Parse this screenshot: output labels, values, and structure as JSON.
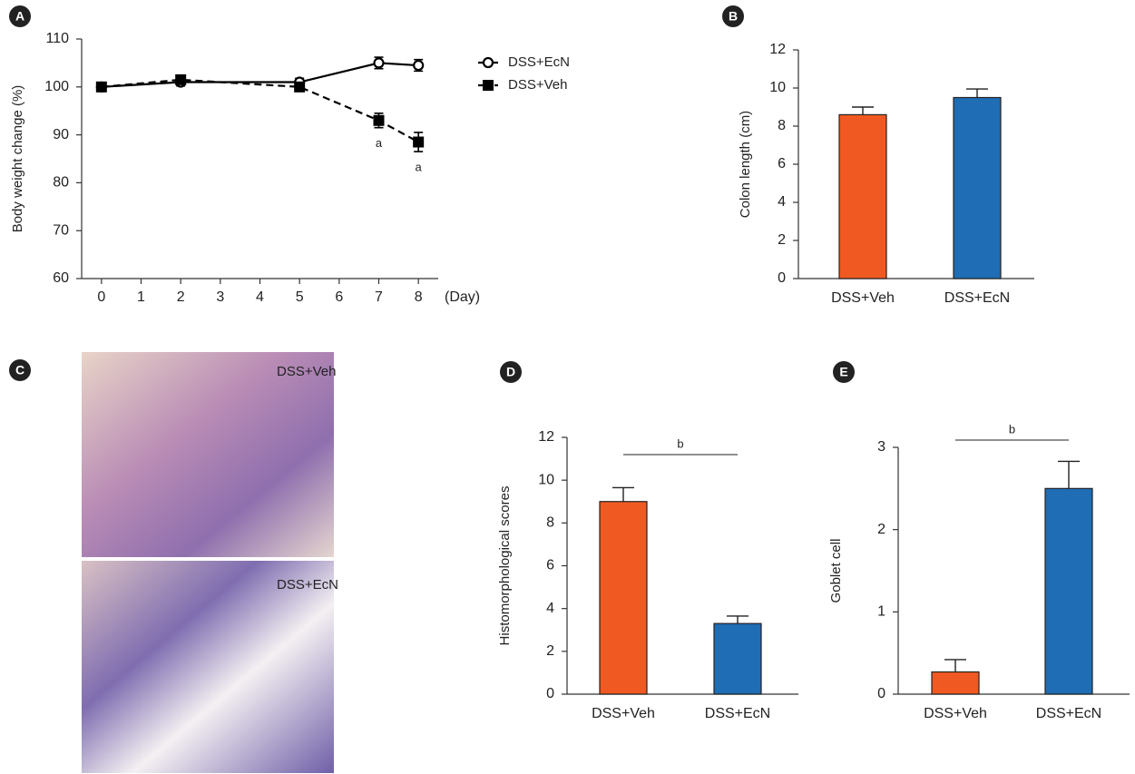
{
  "chart_data": [
    {
      "panel": "A",
      "type": "line",
      "ylabel": "Body weight change (%)",
      "xlabel": "(Day)",
      "legend": "right",
      "x": [
        0,
        2,
        5,
        7,
        8
      ],
      "xlim": [
        -0.5,
        8.5
      ],
      "xticks": [
        0,
        1,
        2,
        3,
        4,
        5,
        6,
        7,
        8
      ],
      "ylim": [
        60,
        110
      ],
      "yticks": [
        60,
        70,
        80,
        90,
        100,
        110
      ],
      "series": [
        {
          "name": "DSS+EcN",
          "color": "#000000",
          "marker": "circle-open",
          "dashed": false,
          "values": [
            100,
            101,
            101,
            105,
            104.5
          ],
          "errors": [
            0.5,
            0.8,
            0.8,
            1.2,
            1.2
          ]
        },
        {
          "name": "DSS+Veh",
          "color": "#000000",
          "marker": "square",
          "dashed": true,
          "values": [
            100,
            101.5,
            100,
            93,
            88.5
          ],
          "errors": [
            0.5,
            0.8,
            0.8,
            1.5,
            2
          ],
          "point_labels": [
            null,
            null,
            null,
            "a",
            "a"
          ]
        }
      ]
    },
    {
      "panel": "B",
      "type": "bar",
      "ylabel": "Colon length (cm)",
      "categories": [
        "DSS+Veh",
        "DSS+EcN"
      ],
      "values": [
        8.6,
        9.5
      ],
      "errors": [
        0.4,
        0.45
      ],
      "colors": [
        "#f05a22",
        "#1e6db5"
      ],
      "ylim": [
        0,
        12
      ],
      "yticks": [
        0,
        2,
        4,
        6,
        8,
        10,
        12
      ]
    },
    {
      "panel": "D",
      "type": "bar",
      "ylabel": "Histomorphological scores",
      "categories": [
        "DSS+Veh",
        "DSS+EcN"
      ],
      "values": [
        9.0,
        3.3
      ],
      "errors": [
        0.65,
        0.35
      ],
      "colors": [
        "#f05a22",
        "#1e6db5"
      ],
      "ylim": [
        0,
        12
      ],
      "yticks": [
        0,
        2,
        4,
        6,
        8,
        10,
        12
      ],
      "significance_label": "b"
    },
    {
      "panel": "E",
      "type": "bar",
      "ylabel": "Goblet cell",
      "categories": [
        "DSS+Veh",
        "DSS+EcN"
      ],
      "values": [
        0.27,
        2.5
      ],
      "errors": [
        0.15,
        0.33
      ],
      "colors": [
        "#f05a22",
        "#1e6db5"
      ],
      "ylim": [
        0,
        3
      ],
      "yticks": [
        0,
        1,
        2,
        3
      ],
      "significance_label": "b"
    }
  ],
  "image_panel": {
    "panel": "C",
    "captions": [
      "DSS+Veh",
      "DSS+EcN"
    ]
  }
}
